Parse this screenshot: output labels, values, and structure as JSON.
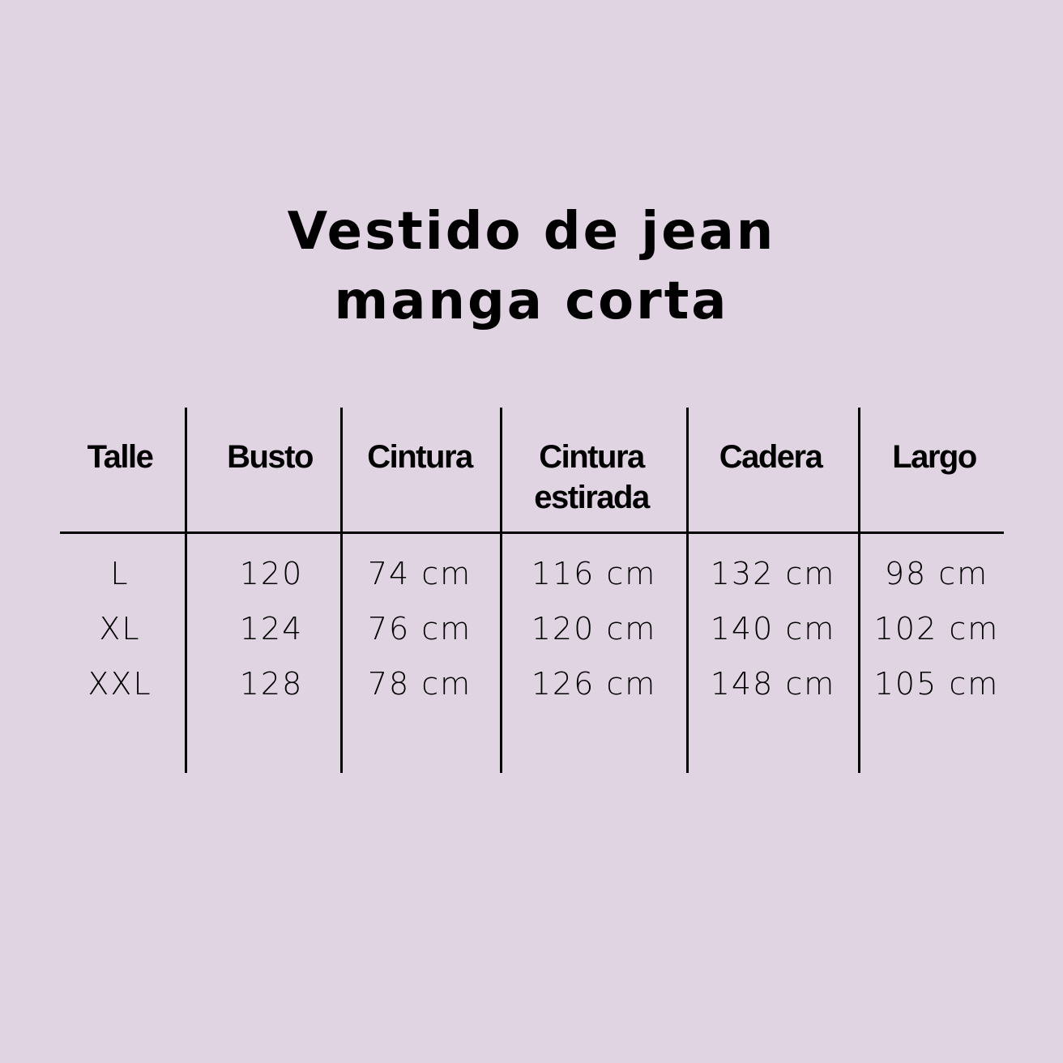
{
  "title": {
    "line1": "Vestido de jean",
    "line2": "manga corta"
  },
  "table": {
    "headers": [
      {
        "line1": "Talle",
        "line2": ""
      },
      {
        "line1": "Busto",
        "line2": ""
      },
      {
        "line1": "Cintura",
        "line2": ""
      },
      {
        "line1": "Cintura",
        "line2": "estirada"
      },
      {
        "line1": "Cadera",
        "line2": ""
      },
      {
        "line1": "Largo",
        "line2": ""
      }
    ],
    "rows": [
      [
        "L",
        "120",
        "74 cm",
        "116 cm",
        "132 cm",
        "98 cm"
      ],
      [
        "XL",
        "124",
        "76 cm",
        "120 cm",
        "140 cm",
        "102 cm"
      ],
      [
        "XXL",
        "128",
        "78 cm",
        "126 cm",
        "148 cm",
        "105 cm"
      ]
    ]
  },
  "colors": {
    "background": "#e0d3e2",
    "text": "#000000"
  }
}
